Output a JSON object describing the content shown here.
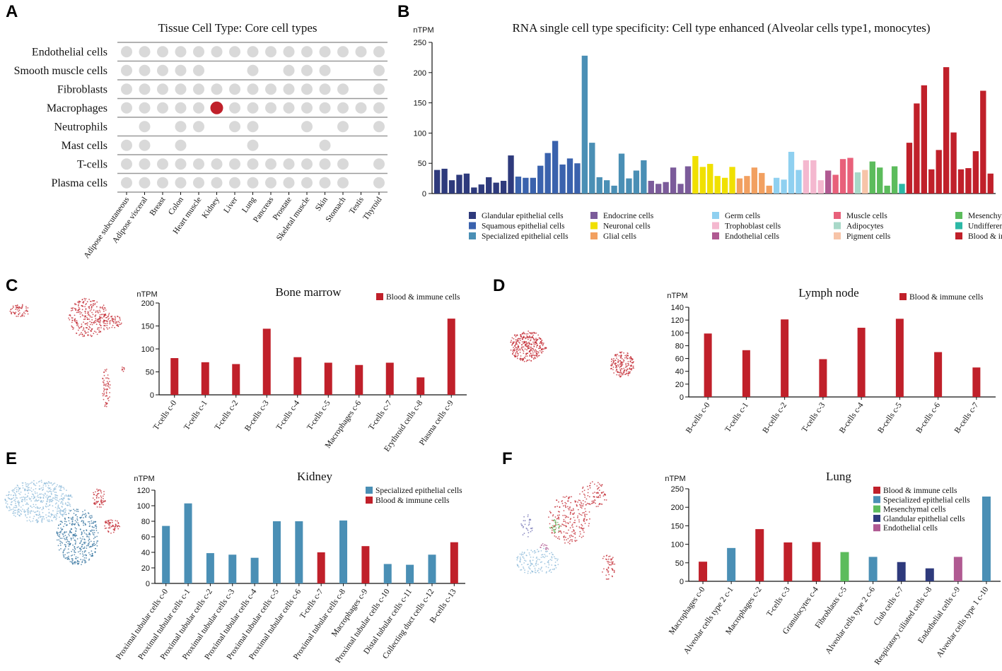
{
  "panels": {
    "A": "A",
    "B": "B",
    "C": "C",
    "D": "D",
    "E": "E",
    "F": "F"
  },
  "colors": {
    "glandular": "#2e3a7c",
    "squamous": "#3a62ad",
    "specialized": "#4a8fb5",
    "endocrine": "#7b5b9a",
    "neuronal": "#f0e000",
    "glial": "#f2a060",
    "germ": "#8fd0f0",
    "trophoblast": "#f4b8cf",
    "endothelial": "#b05a92",
    "muscle": "#e8607a",
    "adipocytes": "#a8d8c8",
    "pigment": "#f7c4a8",
    "mesenchymal": "#5cbc5c",
    "undifferentiated": "#2cb8a6",
    "blood": "#c0202a",
    "dot_grey": "#d9d9d9",
    "grid": "#999999"
  },
  "chart_data": [
    {
      "id": "A",
      "type": "table",
      "title": "Tissue Cell Type: Core cell types",
      "rows": [
        "Endothelial cells",
        "Smooth muscle cells",
        "Fibroblasts",
        "Macrophages",
        "Neutrophils",
        "Mast cells",
        "T-cells",
        "Plasma cells"
      ],
      "columns": [
        "Adipose subcutaneous",
        "Adipose visceral",
        "Breast",
        "Colon",
        "Heart muscle",
        "Kidney",
        "Liver",
        "Lung",
        "Pancreas",
        "Prostate",
        "Skeletal muscle",
        "Skin",
        "Stomach",
        "Testis",
        "Thyroid"
      ],
      "presence": [
        [
          1,
          1,
          1,
          1,
          1,
          1,
          1,
          1,
          1,
          1,
          1,
          1,
          1,
          1,
          1
        ],
        [
          1,
          1,
          1,
          1,
          1,
          0,
          0,
          1,
          0,
          1,
          1,
          1,
          0,
          0,
          1
        ],
        [
          1,
          1,
          1,
          1,
          1,
          1,
          1,
          1,
          1,
          1,
          1,
          1,
          1,
          0,
          1
        ],
        [
          1,
          1,
          1,
          1,
          1,
          2,
          1,
          1,
          1,
          1,
          1,
          1,
          1,
          1,
          1
        ],
        [
          0,
          1,
          0,
          1,
          1,
          0,
          1,
          1,
          0,
          0,
          1,
          0,
          1,
          0,
          1
        ],
        [
          1,
          1,
          0,
          1,
          0,
          0,
          0,
          1,
          0,
          0,
          0,
          1,
          0,
          0,
          0
        ],
        [
          1,
          1,
          1,
          1,
          1,
          1,
          1,
          1,
          1,
          1,
          1,
          1,
          1,
          0,
          1
        ],
        [
          1,
          1,
          1,
          1,
          1,
          1,
          1,
          1,
          1,
          1,
          1,
          1,
          1,
          0,
          1
        ]
      ],
      "legend": "0 = absent, 1 = grey dot, 2 = red dot (enriched)"
    },
    {
      "id": "B",
      "type": "bar",
      "title": "RNA single cell type specificity: Cell type enhanced (Alveolar cells type1, monocytes)",
      "ylabel": "nTPM",
      "ylim": [
        0,
        250
      ],
      "yticks": [
        0,
        50,
        100,
        150,
        200,
        250
      ],
      "groups": [
        {
          "key": "glandular",
          "values": [
            39,
            41,
            22,
            31,
            33,
            10,
            15,
            27,
            18,
            21,
            63
          ]
        },
        {
          "key": "squamous",
          "values": [
            28,
            26,
            26,
            46,
            67,
            87,
            48,
            58,
            50
          ]
        },
        {
          "key": "specialized",
          "values": [
            228,
            84,
            27,
            22,
            13,
            66,
            25,
            38,
            55
          ]
        },
        {
          "key": "endocrine",
          "values": [
            21,
            16,
            19,
            43,
            16,
            45
          ]
        },
        {
          "key": "neuronal",
          "values": [
            62,
            44,
            49,
            29,
            26,
            44
          ]
        },
        {
          "key": "glial",
          "values": [
            25,
            29,
            43,
            34,
            13
          ]
        },
        {
          "key": "germ",
          "values": [
            26,
            23,
            69,
            39
          ]
        },
        {
          "key": "trophoblast",
          "values": [
            55,
            55,
            22
          ]
        },
        {
          "key": "endothelial",
          "values": [
            38
          ]
        },
        {
          "key": "muscle",
          "values": [
            31,
            57,
            59
          ]
        },
        {
          "key": "adipocytes",
          "values": [
            35
          ]
        },
        {
          "key": "pigment",
          "values": [
            39
          ]
        },
        {
          "key": "mesenchymal",
          "values": [
            53,
            43,
            13,
            45
          ]
        },
        {
          "key": "undifferentiated",
          "values": [
            16
          ]
        },
        {
          "key": "blood",
          "values": [
            84,
            149,
            179,
            40,
            72,
            209,
            101,
            40,
            42,
            70,
            170,
            33
          ]
        }
      ],
      "legend": [
        {
          "key": "glandular",
          "label": "Glandular epithelial cells"
        },
        {
          "key": "squamous",
          "label": "Squamous epithelial cells"
        },
        {
          "key": "specialized",
          "label": "Specialized epithelial cells"
        },
        {
          "key": "endocrine",
          "label": "Endocrine cells"
        },
        {
          "key": "neuronal",
          "label": "Neuronal cells"
        },
        {
          "key": "glial",
          "label": "Glial cells"
        },
        {
          "key": "germ",
          "label": "Germ cells"
        },
        {
          "key": "trophoblast",
          "label": "Trophoblast cells"
        },
        {
          "key": "endothelial",
          "label": "Endothelial cells"
        },
        {
          "key": "muscle",
          "label": "Muscle cells"
        },
        {
          "key": "adipocytes",
          "label": "Adipocytes"
        },
        {
          "key": "pigment",
          "label": "Pigment cells"
        },
        {
          "key": "mesenchymal",
          "label": "Mesenchymal cells"
        },
        {
          "key": "undifferentiated",
          "label": "Undifferentiated cells"
        },
        {
          "key": "blood",
          "label": "Blood & immune cells"
        }
      ]
    },
    {
      "id": "C",
      "type": "bar",
      "title": "Bone marrow",
      "ylabel": "nTPM",
      "ylim": [
        0,
        200
      ],
      "yticks": [
        0,
        50,
        100,
        150,
        200
      ],
      "categories": [
        "T-cells c-0",
        "T-cells c-1",
        "T-cells c-2",
        "B-cells c-3",
        "T-cells c-4",
        "T-cells c-5",
        "Macrophages c-6",
        "T-cells c-7",
        "Erythroid cells c-8",
        "Plasma cells c-9"
      ],
      "values": [
        80,
        71,
        67,
        144,
        82,
        70,
        65,
        70,
        38,
        166
      ],
      "colors": [
        "blood",
        "blood",
        "blood",
        "blood",
        "blood",
        "blood",
        "blood",
        "blood",
        "blood",
        "blood"
      ],
      "legend": [
        {
          "key": "blood",
          "label": "Blood & immune cells"
        }
      ]
    },
    {
      "id": "D",
      "type": "bar",
      "title": "Lymph node",
      "ylabel": "nTPM",
      "ylim": [
        0,
        140
      ],
      "yticks": [
        0,
        20,
        40,
        60,
        80,
        100,
        120,
        140
      ],
      "categories": [
        "B-cells c-0",
        "T-cells c-1",
        "B-cells c-2",
        "T-cells c-3",
        "B-cells c-4",
        "B-cells c-5",
        "B-cells c-6",
        "B-cells c-7"
      ],
      "values": [
        99,
        73,
        121,
        59,
        108,
        122,
        70,
        46
      ],
      "colors": [
        "blood",
        "blood",
        "blood",
        "blood",
        "blood",
        "blood",
        "blood",
        "blood"
      ],
      "legend": [
        {
          "key": "blood",
          "label": "Blood & immune cells"
        }
      ]
    },
    {
      "id": "E",
      "type": "bar",
      "title": "Kidney",
      "ylabel": "nTPM",
      "ylim": [
        0,
        120
      ],
      "yticks": [
        0,
        20,
        40,
        60,
        80,
        100,
        120
      ],
      "categories": [
        "Proximal tubular cells c-0",
        "Proximal tubular cells c-1",
        "Proximal tubular cells c-2",
        "Proximal tubular cells c-3",
        "Proximal tubular cells c-4",
        "Proximal tubular cells c-5",
        "Proximal tubular cells c-6",
        "T-cells c-7",
        "Proximal tubular cells c-8",
        "Macrophages c-9",
        "Proximal tubular cells c-10",
        "Distal tubular cells c-11",
        "Collecting duct cells c-12",
        "B-cells c-13"
      ],
      "values": [
        74,
        103,
        39,
        37,
        33,
        80,
        80,
        40,
        81,
        48,
        25,
        24,
        37,
        53
      ],
      "colors": [
        "specialized",
        "specialized",
        "specialized",
        "specialized",
        "specialized",
        "specialized",
        "specialized",
        "blood",
        "specialized",
        "blood",
        "specialized",
        "specialized",
        "specialized",
        "blood"
      ],
      "legend": [
        {
          "key": "specialized",
          "label": "Specialized epithelial cells"
        },
        {
          "key": "blood",
          "label": "Blood & immune cells"
        }
      ]
    },
    {
      "id": "F",
      "type": "bar",
      "title": "Lung",
      "ylabel": "nTPM",
      "ylim": [
        0,
        250
      ],
      "yticks": [
        0,
        50,
        100,
        150,
        200,
        250
      ],
      "categories": [
        "Macrophages c-0",
        "Alveolar cells type 2 c-1",
        "Macrophages c-2",
        "T-cells c-3",
        "Granulocytes c-4",
        "Fibroblasts c-5",
        "Alveolar cells type 2 c-6",
        "Club cells c-7",
        "Respiratory ciliated cells c-8",
        "Endothelial cells c-9",
        "Alveolar cells type 1 c-10"
      ],
      "values": [
        53,
        90,
        141,
        105,
        106,
        79,
        66,
        52,
        35,
        66,
        229
      ],
      "colors": [
        "blood",
        "specialized",
        "blood",
        "blood",
        "blood",
        "mesenchymal",
        "specialized",
        "glandular",
        "glandular",
        "endothelial",
        "specialized"
      ],
      "legend": [
        {
          "key": "blood",
          "label": "Blood & immune cells"
        },
        {
          "key": "specialized",
          "label": "Specialized epithelial cells"
        },
        {
          "key": "mesenchymal",
          "label": "Mesenchymal cells"
        },
        {
          "key": "glandular",
          "label": "Glandular epithelial cells"
        },
        {
          "key": "endothelial",
          "label": "Endothelial cells"
        }
      ]
    }
  ]
}
